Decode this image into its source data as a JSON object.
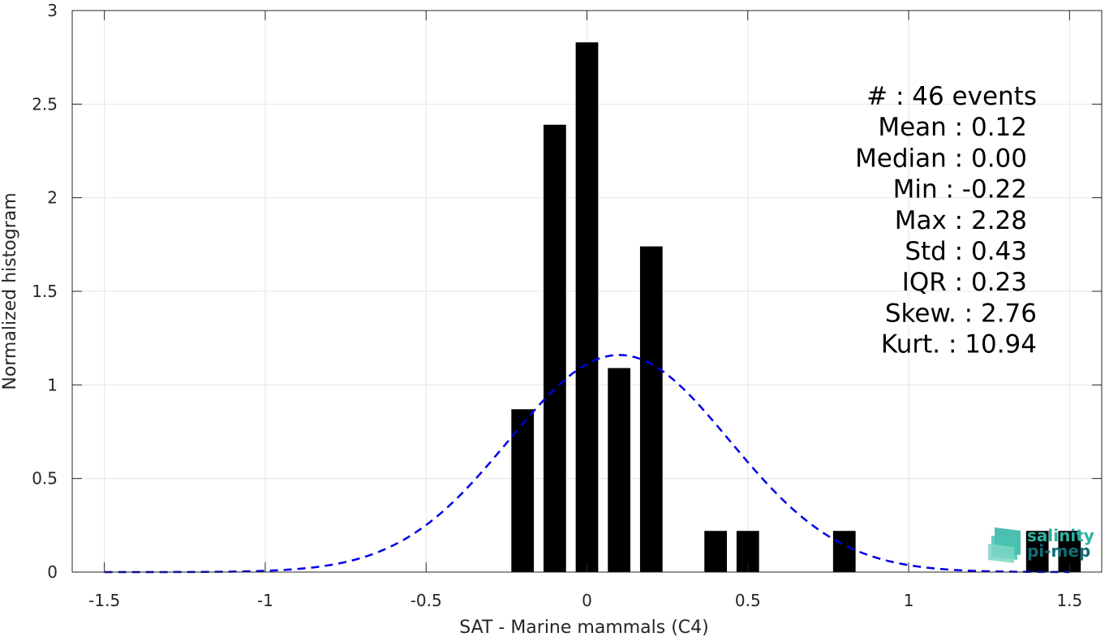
{
  "chart_data": {
    "type": "bar",
    "xlabel": "SAT - Marine mammals (C4)",
    "ylabel": "Normalized histogram",
    "xlim": [
      -1.6,
      1.6
    ],
    "ylim": [
      0,
      3
    ],
    "grid": true,
    "x_ticks": [
      -1.5,
      -1,
      -0.5,
      0,
      0.5,
      1,
      1.5
    ],
    "x_tick_labels": [
      "-1.5",
      "-1",
      "-0.5",
      "0",
      "0.5",
      "1",
      "1.5"
    ],
    "y_ticks": [
      0,
      0.5,
      1,
      1.5,
      2,
      2.5,
      3
    ],
    "y_tick_labels": [
      "0",
      "0.5",
      "1",
      "1.5",
      "2",
      "2.5",
      "3"
    ],
    "bar_width": 0.07,
    "bars": [
      {
        "x": -0.2,
        "value": 0.87
      },
      {
        "x": -0.1,
        "value": 2.39
      },
      {
        "x": 0.0,
        "value": 2.83
      },
      {
        "x": 0.1,
        "value": 1.09
      },
      {
        "x": 0.2,
        "value": 1.74
      },
      {
        "x": 0.4,
        "value": 0.22
      },
      {
        "x": 0.5,
        "value": 0.22
      },
      {
        "x": 0.8,
        "value": 0.22
      },
      {
        "x": 1.4,
        "value": 0.22
      },
      {
        "x": 1.5,
        "value": 0.22
      }
    ],
    "fit_curve": {
      "style": "dashed",
      "color": "#0000e6",
      "mean": 0.1,
      "amplitude": 1.16,
      "sigma": 0.343,
      "x_range": [
        -1.5,
        1.5
      ]
    },
    "stats_lines": [
      "#  : 46 events",
      "Mean : 0.12",
      "Median : 0.00",
      "Min : -0.22",
      "Max : 2.28",
      "Std : 0.43",
      "IQR : 0.23",
      "Skew. : 2.76",
      "Kurt. : 10.94"
    ],
    "colors": {
      "bars": "#000000",
      "curve": "#0000e6",
      "grid": "#e6e6e6",
      "axes": "#262626"
    }
  },
  "logo": {
    "line1": "salinity",
    "line2": "pi-mep",
    "color1": "#2bb3a3",
    "color2": "#136d74"
  }
}
